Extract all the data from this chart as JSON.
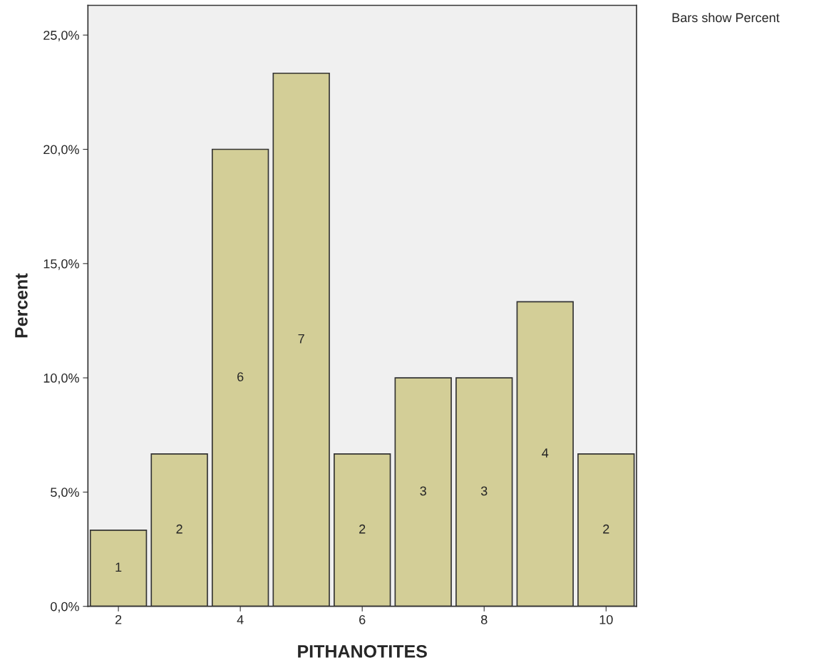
{
  "chart_data": {
    "type": "bar",
    "xlabel": "PITHANOTITES",
    "ylabel": "Percent",
    "x": [
      2,
      3,
      4,
      5,
      6,
      7,
      8,
      9,
      10
    ],
    "values": [
      3.33,
      6.67,
      20.0,
      23.33,
      6.67,
      10.0,
      10.0,
      13.33,
      6.67
    ],
    "color": "#d3ce97",
    "xlim": [
      1.5,
      10.5
    ],
    "xticks": [
      2,
      4,
      6,
      8,
      10
    ],
    "ylim": [
      0,
      26.3
    ],
    "yticks": [
      {
        "value": 0,
        "label": "0,0%"
      },
      {
        "value": 5,
        "label": "5,0%"
      },
      {
        "value": 10,
        "label": "10,0%"
      },
      {
        "value": 15,
        "label": "15,0%"
      },
      {
        "value": 20,
        "label": "20,0%"
      },
      {
        "value": 25,
        "label": "25,0%"
      }
    ],
    "grid": false,
    "legend": false,
    "annotations": [
      "Bars show Percent",
      "1",
      "2",
      "6",
      "7",
      "2",
      "3",
      "3",
      "4",
      "2"
    ]
  }
}
